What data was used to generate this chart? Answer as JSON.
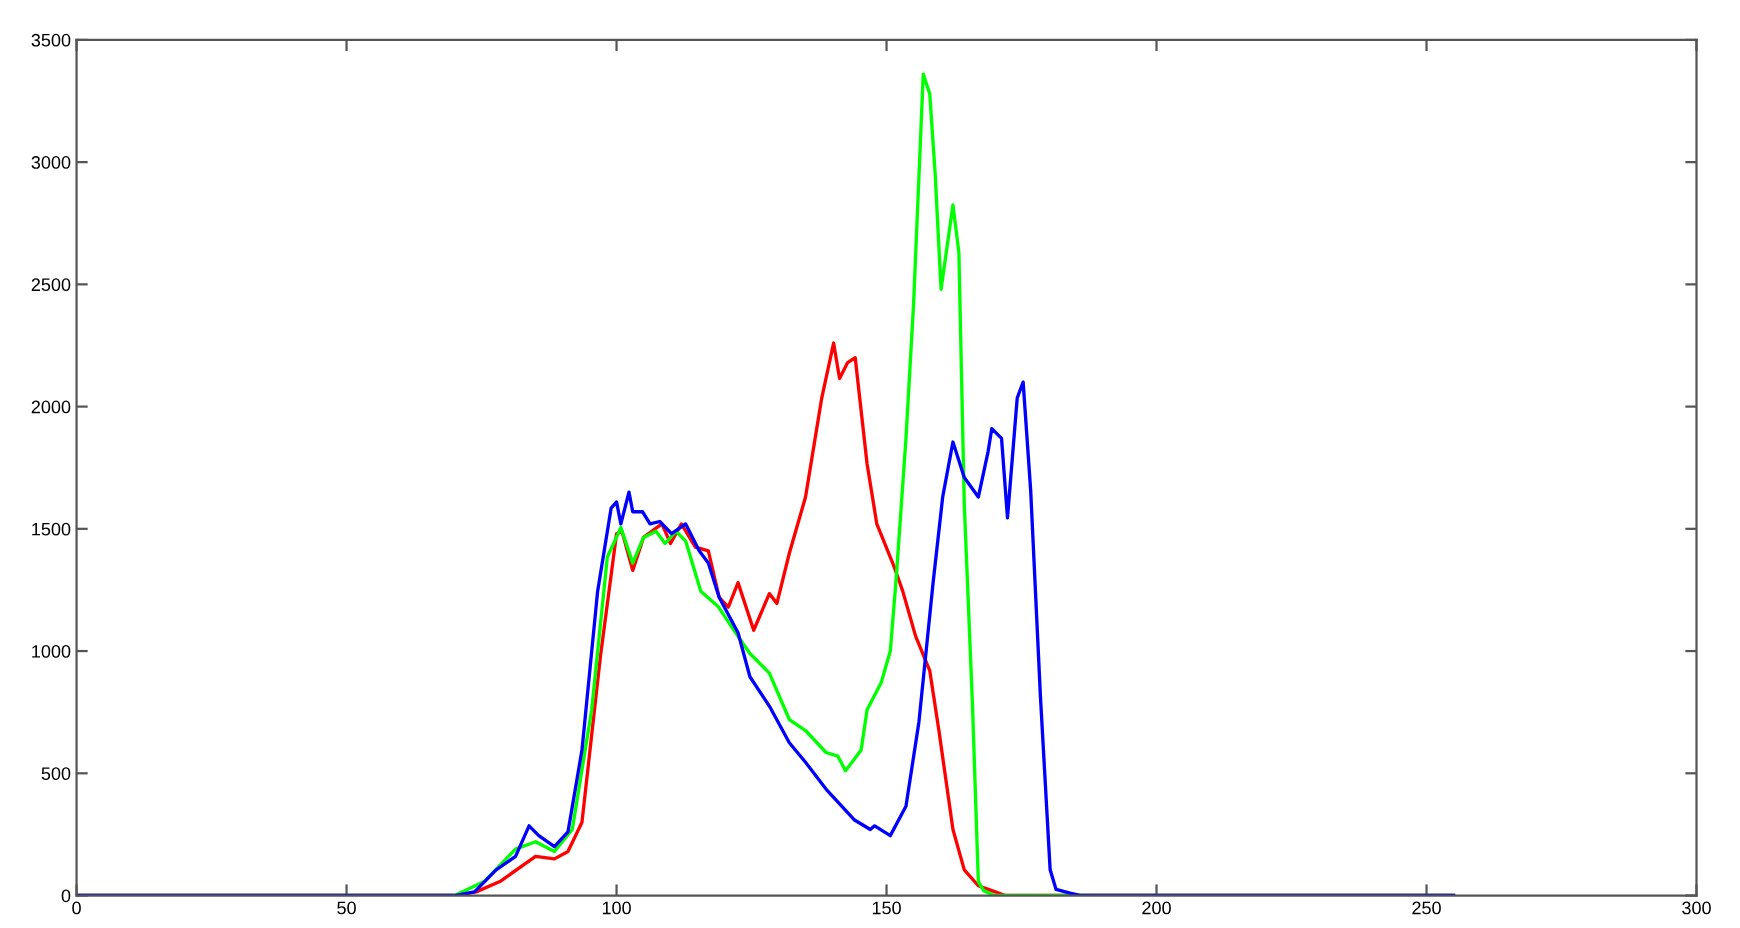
{
  "chart_data": {
    "type": "line",
    "xlim": [
      0,
      300
    ],
    "ylim": [
      0,
      3500
    ],
    "xticks": [
      0,
      50,
      100,
      150,
      200,
      250,
      300
    ],
    "yticks": [
      0,
      500,
      1000,
      1500,
      2000,
      2500,
      3000,
      3500
    ],
    "grid": false,
    "legend": false,
    "marker": "none",
    "line_style": "solid",
    "series": [
      {
        "color": "#ff0000",
        "x": [
          0,
          70,
          74,
          78.4,
          85,
          88.5,
          91,
          93.6,
          97,
          100,
          101,
          103,
          105,
          108.4,
          110,
          112,
          114.6,
          117,
          119,
          120.7,
          122.5,
          125.4,
          128.3,
          129.7,
          132,
          135,
          138,
          140.2,
          141.3,
          142.8,
          144.2,
          146.4,
          148.2,
          151.4,
          153,
          155.4,
          158,
          159.7,
          162.3,
          164.4,
          167,
          169.5,
          172,
          255
        ],
        "values": [
          0,
          0,
          15,
          57,
          160,
          150,
          180,
          300,
          975,
          1480,
          1490,
          1330,
          1465,
          1520,
          1440,
          1520,
          1425,
          1410,
          1220,
          1180,
          1280,
          1085,
          1235,
          1195,
          1400,
          1630,
          2035,
          2260,
          2115,
          2180,
          2200,
          1765,
          1520,
          1345,
          1245,
          1060,
          920,
          675,
          270,
          105,
          40,
          20,
          0,
          0
        ]
      },
      {
        "color": "#00ff00",
        "x": [
          0,
          70,
          75.5,
          81.3,
          85,
          88.5,
          91.8,
          95.4,
          98.3,
          100.8,
          103,
          105,
          107.3,
          109,
          111,
          112.8,
          115.6,
          118.9,
          122.5,
          124.7,
          128.3,
          132,
          135,
          138.8,
          141,
          142.4,
          145.3,
          146.4,
          149,
          150.7,
          151.8,
          153.6,
          155,
          156.8,
          158,
          159,
          160.1,
          162.3,
          163.4,
          164.4,
          165.9,
          167,
          168,
          170,
          255
        ],
        "values": [
          0,
          0,
          57,
          190,
          220,
          180,
          270,
          760,
          1385,
          1505,
          1360,
          1465,
          1490,
          1440,
          1490,
          1450,
          1245,
          1180,
          1060,
          990,
          910,
          720,
          675,
          585,
          570,
          510,
          595,
          760,
          870,
          1000,
          1300,
          1870,
          2415,
          3360,
          3280,
          2955,
          2480,
          2825,
          2630,
          1600,
          790,
          57,
          20,
          0,
          0
        ]
      },
      {
        "color": "#0000ff",
        "x": [
          0,
          70,
          73.7,
          77.7,
          81.3,
          83.8,
          85.6,
          88.5,
          91,
          93.6,
          96.5,
          99,
          100,
          100.8,
          102.3,
          103,
          104.8,
          106.2,
          108,
          110.2,
          112.8,
          115.3,
          117,
          119,
          122.5,
          124.7,
          128.3,
          132,
          135,
          139,
          144,
          147,
          147.8,
          150.7,
          153.6,
          156,
          158.6,
          160.4,
          162.3,
          164.4,
          167,
          168.8,
          169.5,
          171.3,
          172.4,
          174.2,
          175.3,
          176.7,
          178.5,
          180.3,
          181.4,
          184,
          186,
          255
        ],
        "values": [
          0,
          0,
          15,
          105,
          160,
          285,
          245,
          200,
          260,
          595,
          1245,
          1585,
          1610,
          1520,
          1650,
          1570,
          1570,
          1520,
          1530,
          1480,
          1520,
          1410,
          1360,
          1220,
          1075,
          895,
          775,
          625,
          545,
          430,
          310,
          270,
          285,
          245,
          365,
          710,
          1275,
          1630,
          1855,
          1710,
          1630,
          1815,
          1910,
          1870,
          1545,
          2035,
          2100,
          1655,
          815,
          105,
          25,
          10,
          0,
          0
        ]
      }
    ]
  }
}
